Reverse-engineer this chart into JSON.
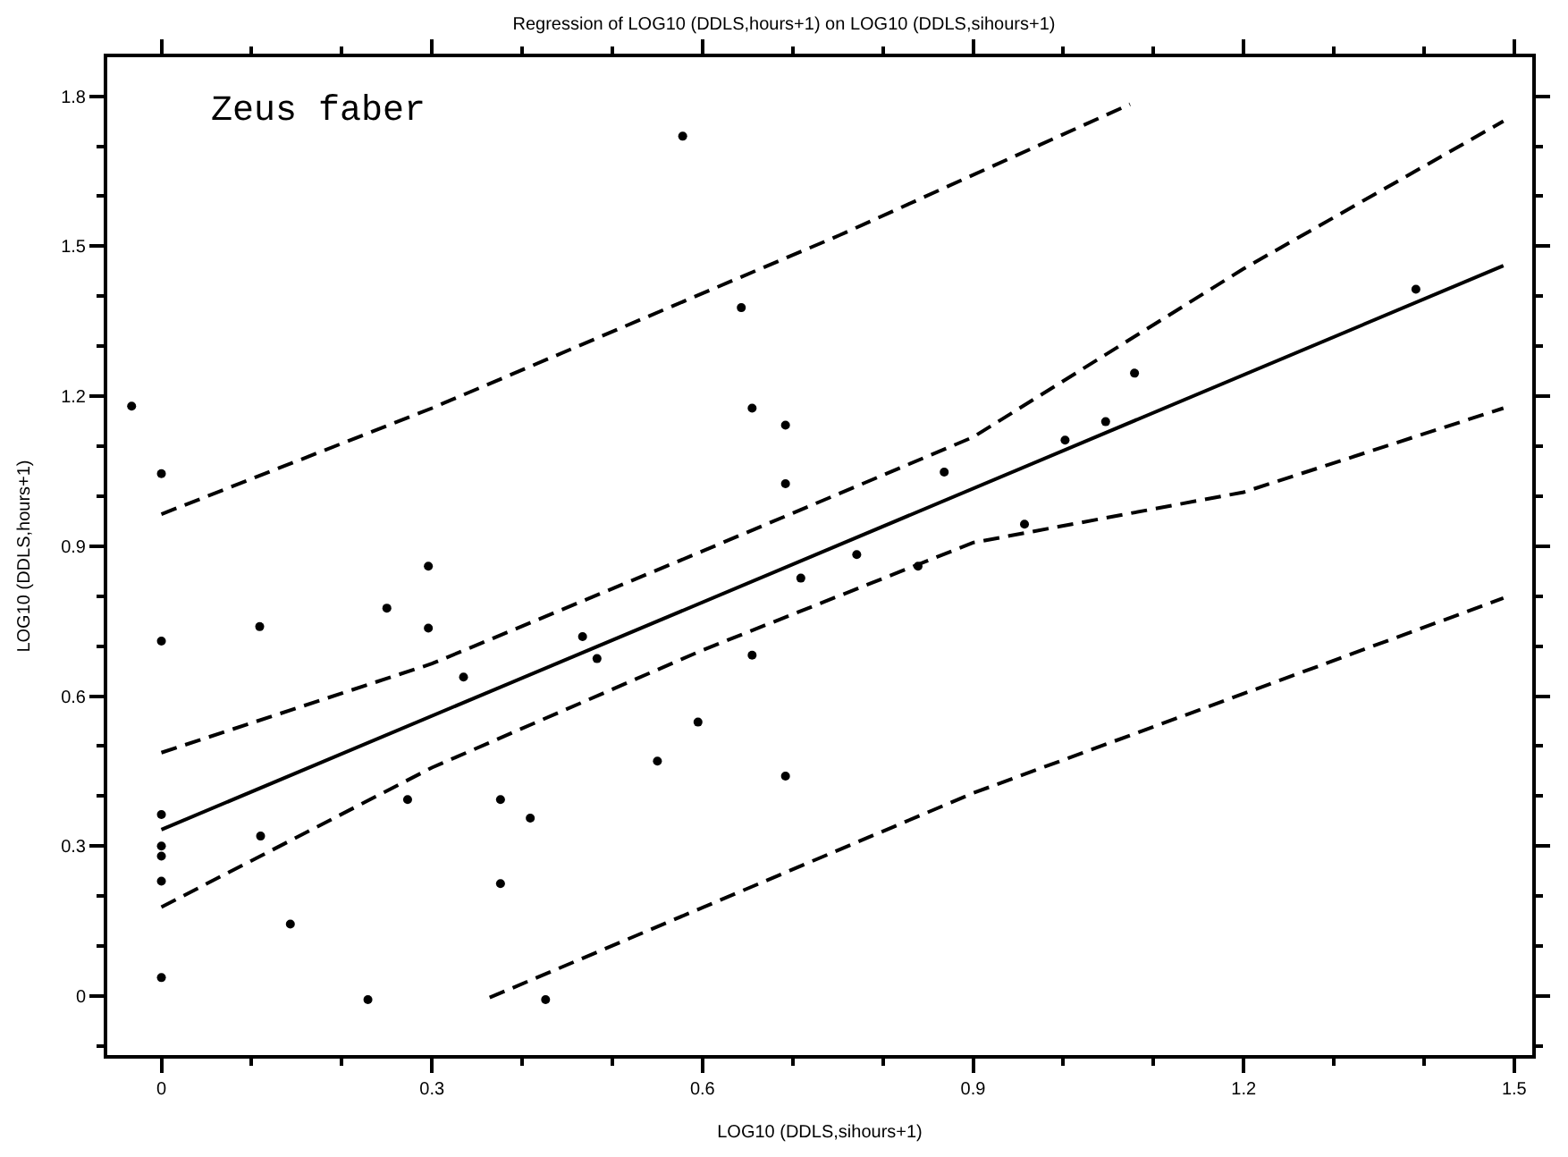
{
  "chart_data": {
    "type": "scatter",
    "title": "Regression of LOG10 (DDLS,hours+1) on LOG10 (DDLS,sihours+1)",
    "xlabel": "LOG10 (DDLS,sihours+1)",
    "ylabel": "LOG10 (DDLS,hours+1)",
    "annotations": [
      "Zeus faber"
    ],
    "xlim": [
      -0.06,
      1.52
    ],
    "ylim": [
      -0.118,
      1.878
    ],
    "xticks": [
      0,
      0.3,
      0.6,
      0.9,
      1.2,
      1.5
    ],
    "yticks": [
      0,
      0.3,
      0.6,
      0.9,
      1.2,
      1.5,
      1.8
    ],
    "series": [
      {
        "marker": "circle",
        "color": "#000000",
        "x": [
          -0.033,
          0,
          0,
          0,
          0,
          0,
          0,
          0,
          0.109,
          0.11,
          0.143,
          0.229,
          0.25,
          0.273,
          0.296,
          0.296,
          0.335,
          0.376,
          0.376,
          0.409,
          0.426,
          0.467,
          0.483,
          0.55,
          0.595,
          0.655,
          0.692,
          0.709,
          0.578,
          0.643,
          0.655,
          0.692,
          0.692,
          0.771,
          0.839,
          0.868,
          0.957,
          1.002,
          1.047,
          1.079,
          1.391
        ],
        "values": [
          1.18,
          1.045,
          0.71,
          0.363,
          0.3,
          0.28,
          0.23,
          0.037,
          0.739,
          0.32,
          0.144,
          -0.007,
          0.776,
          0.393,
          0.86,
          0.736,
          0.638,
          0.393,
          0.225,
          0.356,
          -0.007,
          0.719,
          0.675,
          0.47,
          0.548,
          0.682,
          0.44,
          0.836,
          1.72,
          1.377,
          1.176,
          1.142,
          1.025,
          0.883,
          0.86,
          1.048,
          0.944,
          1.112,
          1.149,
          1.246,
          1.414
        ]
      },
      {
        "type": "line",
        "line_style": "solid",
        "color": "#000000",
        "x": [
          0,
          1.488
        ],
        "values": [
          0.333,
          1.461
        ]
      },
      {
        "type": "line",
        "line_style": "dashed",
        "color": "#000000",
        "x": [
          0,
          0.3,
          0.6,
          0.9,
          1.2,
          1.488
        ],
        "values": [
          0.487,
          0.665,
          0.89,
          1.118,
          1.455,
          1.75
        ]
      },
      {
        "type": "line",
        "line_style": "dashed",
        "color": "#000000",
        "x": [
          0,
          0.3,
          0.6,
          0.9,
          1.2,
          1.488
        ],
        "values": [
          0.178,
          0.457,
          0.692,
          0.907,
          1.008,
          1.176
        ]
      },
      {
        "type": "line",
        "line_style": "dashed",
        "color": "#000000",
        "x": [
          0,
          0.3,
          0.752,
          1.074
        ],
        "values": [
          0.964,
          1.176,
          1.522,
          1.784
        ]
      },
      {
        "type": "line",
        "line_style": "dashed",
        "color": "#000000",
        "x": [
          0.364,
          0.9,
          1.488
        ],
        "values": [
          -0.003,
          0.406,
          0.796
        ]
      }
    ]
  }
}
